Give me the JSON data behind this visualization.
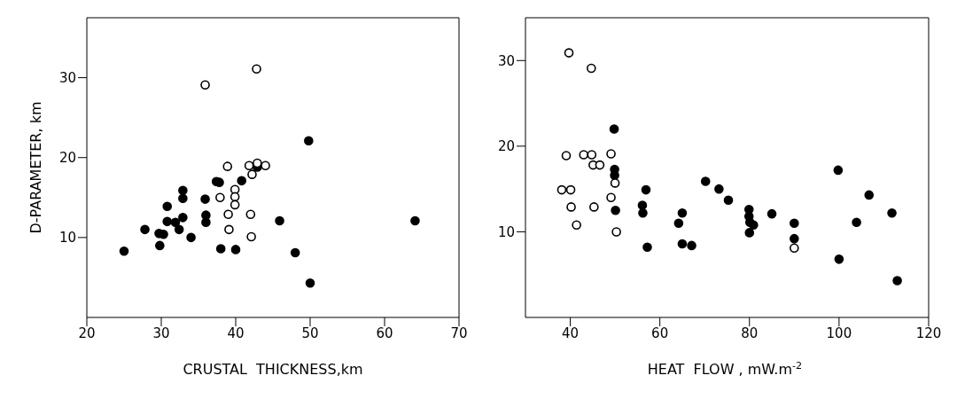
{
  "chart_data": [
    {
      "type": "scatter",
      "xlabel": "CRUSTAL  THICKNESS,km",
      "ylabel": "D-PARAMETER, km",
      "xlim": [
        20,
        70
      ],
      "ylim": [
        0,
        37.5
      ],
      "xticks": [
        20,
        30,
        40,
        50,
        60,
        70
      ],
      "yticks": [
        10,
        20,
        30
      ],
      "grid": false,
      "legend": false,
      "marker": "circle",
      "series": [
        {
          "color": "#000000",
          "x": [
            25,
            27.8,
            29.7,
            30.3,
            29.8,
            30.8,
            30.8,
            31.9,
            32.4,
            32.9,
            32.9,
            32.9,
            34,
            35.9,
            36,
            36,
            37.4,
            37.8,
            38,
            40,
            40.8,
            42.9,
            45.9,
            48,
            49.8,
            50,
            64.1
          ],
          "values": [
            8.3,
            11,
            10.5,
            10.4,
            9,
            13.9,
            12,
            11.9,
            11,
            12.5,
            15.9,
            14.9,
            10,
            14.8,
            12.8,
            11.9,
            17,
            16.9,
            8.6,
            8.5,
            17.1,
            18.8,
            12.1,
            8.1,
            22.1,
            4.3,
            12.1
          ]
        },
        {
          "color": "#ffffff",
          "x": [
            35.9,
            42.8,
            38.9,
            41.8,
            42.9,
            44,
            42.2,
            37.9,
            39.9,
            39.9,
            39.9,
            39,
            42,
            39.1,
            42.1
          ],
          "values": [
            29.1,
            31.1,
            18.9,
            19,
            19.3,
            19,
            17.9,
            15,
            16,
            15.1,
            14.1,
            12.9,
            12.9,
            11,
            10.1
          ]
        }
      ]
    },
    {
      "type": "scatter",
      "xlabel": "HEAT  FLOW , mW.m$^{-2}$",
      "xlim": [
        30,
        120
      ],
      "ylim": [
        0,
        35
      ],
      "xticks": [
        40,
        60,
        80,
        100,
        120
      ],
      "yticks": [
        10,
        20,
        30
      ],
      "grid": false,
      "legend": false,
      "marker": "circle",
      "series": [
        {
          "color": "#000000",
          "x": [
            49.8,
            49.9,
            49.9,
            50.1,
            56.9,
            56.1,
            56.2,
            57.2,
            64.2,
            65,
            65,
            67.1,
            70.2,
            73.2,
            75.3,
            79.9,
            79.9,
            80.1,
            80.9,
            80,
            85,
            90,
            90,
            99.8,
            100,
            103.9,
            106.7,
            111.8,
            113
          ],
          "values": [
            22,
            17.3,
            16.6,
            12.5,
            14.9,
            13.1,
            12.2,
            8.2,
            11,
            12.2,
            8.6,
            8.4,
            15.9,
            15,
            13.7,
            12.6,
            11.8,
            11.1,
            10.8,
            9.9,
            12.1,
            11,
            9.2,
            17.2,
            6.8,
            11.1,
            14.3,
            12.2,
            4.3
          ]
        },
        {
          "color": "#ffffff",
          "x": [
            39.7,
            44.7,
            39.1,
            43,
            44.8,
            45.1,
            46.6,
            49.1,
            38.1,
            40.1,
            40.2,
            45.3,
            41.4,
            49.1,
            50,
            50.3,
            90
          ],
          "values": [
            30.9,
            29.1,
            18.9,
            19,
            19,
            17.8,
            17.8,
            19.1,
            14.9,
            14.9,
            12.9,
            12.9,
            10.8,
            14,
            15.7,
            10,
            8.1
          ]
        }
      ]
    }
  ]
}
